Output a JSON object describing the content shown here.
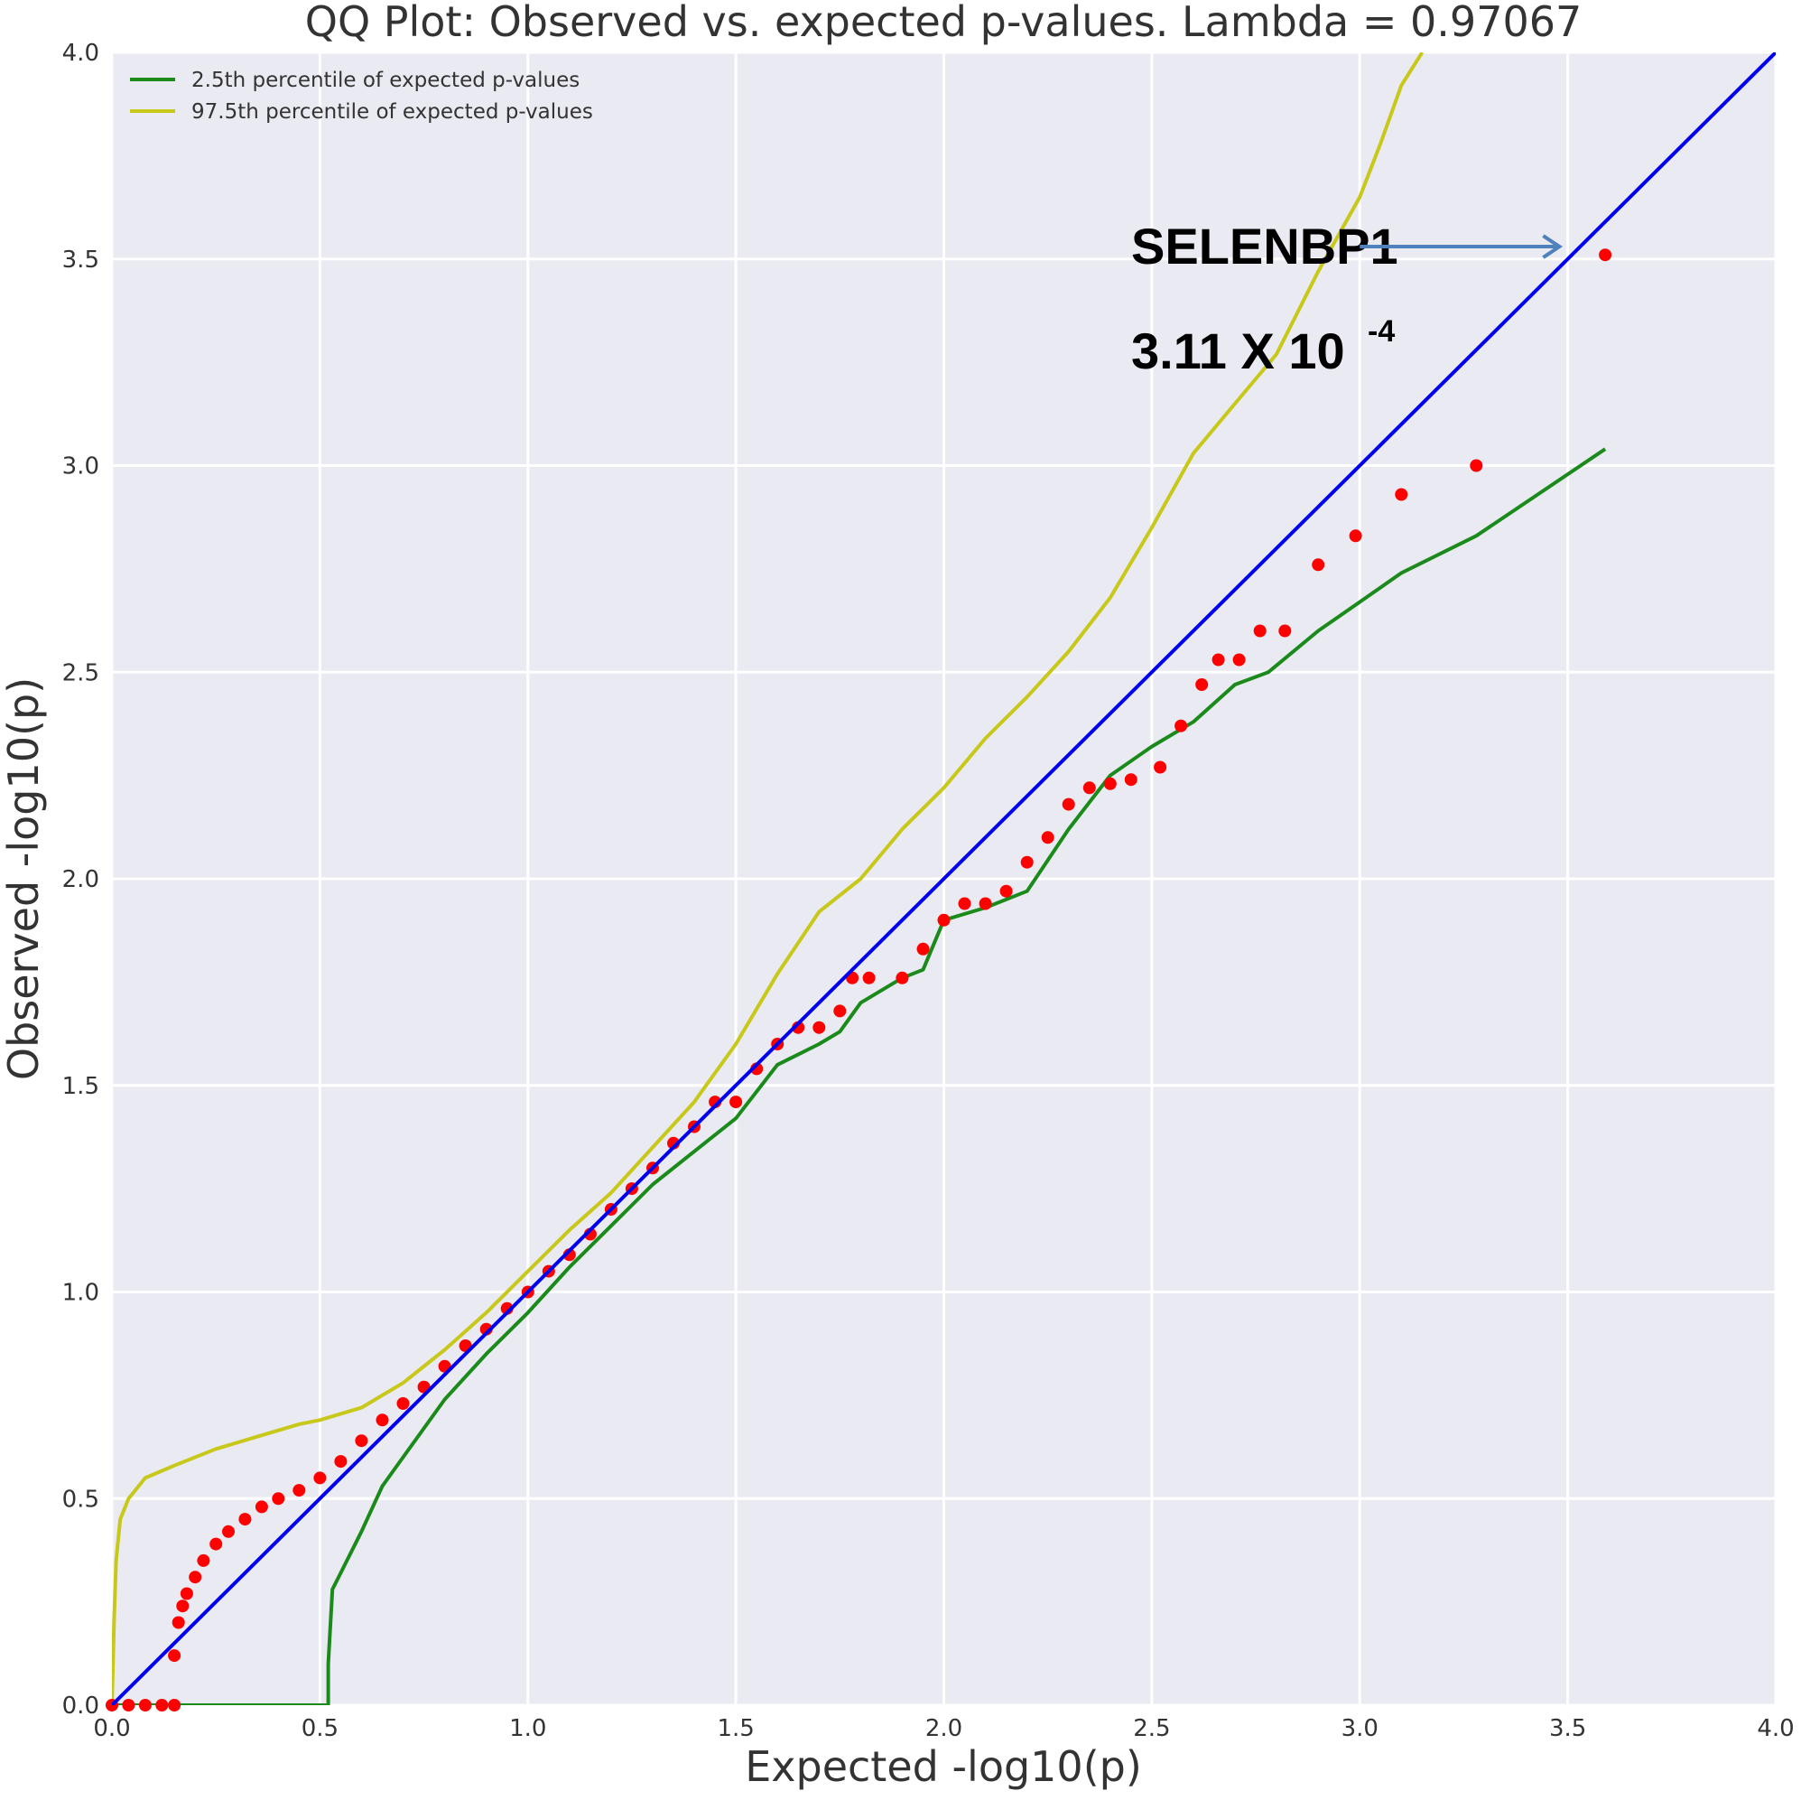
{
  "chart_data": {
    "type": "scatter",
    "title": "QQ Plot: Observed vs. expected p-values. Lambda = 0.97067",
    "xlabel": "Expected -log10(p)",
    "ylabel": "Observed -log10(p)",
    "xlim": [
      0.0,
      4.0
    ],
    "ylim": [
      0.0,
      4.0
    ],
    "xticks": [
      "0.0",
      "0.5",
      "1.0",
      "1.5",
      "2.0",
      "2.5",
      "3.0",
      "3.5",
      "4.0"
    ],
    "yticks": [
      "0.0",
      "0.5",
      "1.0",
      "1.5",
      "2.0",
      "2.5",
      "3.0",
      "3.5",
      "4.0"
    ],
    "grid": true,
    "legend_position": "top-left",
    "colors": {
      "background": "#eaeaf2",
      "grid": "#ffffff",
      "observed": "#ff0000",
      "reference": "#0000ee",
      "lower": "#1a8a1a",
      "upper": "#c8c81a",
      "arrow": "#4f81bd"
    },
    "series": [
      {
        "kind": "line",
        "role": "reference",
        "x": [
          0.0,
          4.0
        ],
        "y": [
          0.0,
          4.0
        ]
      },
      {
        "kind": "line",
        "role": "lower",
        "name": "2.5th percentile of expected p-values",
        "x": [
          0.0,
          0.52,
          0.52,
          0.53,
          0.55,
          0.6,
          0.65,
          0.7,
          0.8,
          0.9,
          1.0,
          1.1,
          1.2,
          1.3,
          1.4,
          1.5,
          1.6,
          1.7,
          1.75,
          1.8,
          1.9,
          1.95,
          2.0,
          2.1,
          2.2,
          2.3,
          2.4,
          2.5,
          2.6,
          2.7,
          2.78,
          2.9,
          3.0,
          3.1,
          3.28,
          3.59
        ],
        "y": [
          0.0,
          0.0,
          0.1,
          0.28,
          0.32,
          0.42,
          0.53,
          0.6,
          0.74,
          0.85,
          0.95,
          1.06,
          1.16,
          1.26,
          1.34,
          1.42,
          1.55,
          1.6,
          1.63,
          1.7,
          1.76,
          1.78,
          1.9,
          1.93,
          1.97,
          2.12,
          2.25,
          2.32,
          2.38,
          2.47,
          2.5,
          2.6,
          2.67,
          2.74,
          2.83,
          3.04
        ]
      },
      {
        "kind": "line",
        "role": "upper",
        "name": "97.5th percentile of expected p-values",
        "x": [
          0.0,
          0.005,
          0.01,
          0.02,
          0.04,
          0.08,
          0.15,
          0.25,
          0.35,
          0.45,
          0.5,
          0.6,
          0.7,
          0.8,
          0.9,
          1.0,
          1.1,
          1.2,
          1.3,
          1.4,
          1.5,
          1.6,
          1.7,
          1.8,
          1.9,
          2.0,
          2.1,
          2.2,
          2.3,
          2.4,
          2.5,
          2.6,
          2.7,
          2.8,
          2.9,
          3.0,
          3.05,
          3.1,
          3.15
        ],
        "y": [
          0.0,
          0.2,
          0.35,
          0.45,
          0.5,
          0.55,
          0.58,
          0.62,
          0.65,
          0.68,
          0.69,
          0.72,
          0.78,
          0.86,
          0.95,
          1.05,
          1.15,
          1.24,
          1.35,
          1.46,
          1.6,
          1.77,
          1.92,
          2.0,
          2.12,
          2.22,
          2.34,
          2.44,
          2.55,
          2.68,
          2.85,
          3.03,
          3.15,
          3.27,
          3.47,
          3.65,
          3.78,
          3.92,
          4.0
        ]
      },
      {
        "kind": "scatter",
        "role": "observed",
        "x": [
          0.0,
          0.04,
          0.08,
          0.12,
          0.15,
          0.15,
          0.16,
          0.17,
          0.18,
          0.2,
          0.22,
          0.25,
          0.28,
          0.32,
          0.36,
          0.4,
          0.45,
          0.5,
          0.55,
          0.6,
          0.65,
          0.7,
          0.75,
          0.8,
          0.85,
          0.9,
          0.95,
          1.0,
          1.05,
          1.1,
          1.15,
          1.2,
          1.25,
          1.3,
          1.35,
          1.4,
          1.45,
          1.5,
          1.55,
          1.6,
          1.65,
          1.7,
          1.75,
          1.78,
          1.82,
          1.9,
          1.95,
          2.0,
          2.05,
          2.1,
          2.15,
          2.2,
          2.25,
          2.3,
          2.35,
          2.4,
          2.45,
          2.52,
          2.57,
          2.62,
          2.66,
          2.71,
          2.76,
          2.82,
          2.9,
          2.99,
          3.1,
          3.28,
          3.59
        ],
        "y": [
          0.0,
          0.0,
          0.0,
          0.0,
          0.0,
          0.12,
          0.2,
          0.24,
          0.27,
          0.31,
          0.35,
          0.39,
          0.42,
          0.45,
          0.48,
          0.5,
          0.52,
          0.55,
          0.59,
          0.64,
          0.69,
          0.73,
          0.77,
          0.82,
          0.87,
          0.91,
          0.96,
          1.0,
          1.05,
          1.09,
          1.14,
          1.2,
          1.25,
          1.3,
          1.36,
          1.4,
          1.46,
          1.46,
          1.54,
          1.6,
          1.64,
          1.64,
          1.68,
          1.76,
          1.76,
          1.76,
          1.83,
          1.9,
          1.94,
          1.94,
          1.97,
          2.04,
          2.1,
          2.18,
          2.22,
          2.23,
          2.24,
          2.27,
          2.37,
          2.47,
          2.53,
          2.53,
          2.6,
          2.6,
          2.76,
          2.83,
          2.93,
          3.0,
          3.51
        ]
      }
    ],
    "annotations": [
      {
        "text": "SELENBP1",
        "x": 2.45,
        "y": 3.5
      },
      {
        "text": "3.11 X 10",
        "superscript": "-4",
        "x": 2.45,
        "y": 3.26
      },
      {
        "kind": "arrow",
        "from": [
          3.0,
          3.53
        ],
        "to": [
          3.48,
          3.53
        ]
      }
    ]
  }
}
